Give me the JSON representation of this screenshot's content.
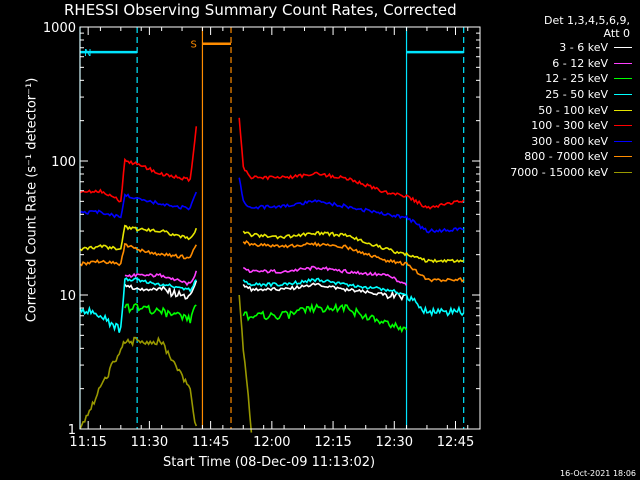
{
  "chart_data": {
    "type": "line",
    "title": "RHESSI Observing Summary Count Rates, Corrected",
    "xlabel": "Start Time (08-Dec-09 11:13:02)",
    "ylabel": "Corrected Count Rate (s⁻¹ detector⁻¹)",
    "y_scale": "log",
    "ylim": [
      1,
      1000
    ],
    "y_ticks": [
      1,
      10,
      100,
      1000
    ],
    "y_tick_labels": [
      "1",
      "10",
      "100",
      "1000"
    ],
    "xlim_minutes": [
      0,
      98
    ],
    "x_tick_labels": [
      "11:15",
      "11:30",
      "11:45",
      "12:00",
      "12:15",
      "12:30",
      "12:45"
    ],
    "x_tick_minutes": [
      2,
      17,
      32,
      47,
      62,
      77,
      92
    ],
    "legend_header": [
      "Det 1,3,4,5,6,9,",
      "Att 0"
    ],
    "legend_position": "top-right",
    "timestamp": "16-Oct-2021 18:06",
    "flags": [
      {
        "label": "N",
        "color": "#00e5ff",
        "start": 0,
        "end": 14,
        "level": 650
      },
      {
        "label": "S",
        "color": "#ff8c00",
        "start": 30,
        "end": 37,
        "level": 750
      },
      {
        "label": "",
        "color": "#00e5ff",
        "start": 80,
        "end": 94,
        "level": 650
      }
    ],
    "vlines": [
      {
        "x": 0,
        "color": "#00e5ff",
        "style": "solid"
      },
      {
        "x": 14,
        "color": "#00e5ff",
        "style": "dashed"
      },
      {
        "x": 30,
        "color": "#ff8c00",
        "style": "solid"
      },
      {
        "x": 37,
        "color": "#ff8c00",
        "style": "dashed"
      },
      {
        "x": 80,
        "color": "#00e5ff",
        "style": "solid"
      },
      {
        "x": 94,
        "color": "#00e5ff",
        "style": "dashed"
      }
    ],
    "x": [
      0,
      5,
      10,
      11,
      14,
      20,
      27,
      28.5,
      29,
      39,
      40,
      42,
      50,
      58,
      65,
      75,
      80,
      85,
      94
    ],
    "series": [
      {
        "name": "3 - 6 keV",
        "color": "#ffffff",
        "values": [
          null,
          null,
          null,
          12,
          11,
          11,
          9.5,
          13,
          null,
          null,
          12,
          11,
          11,
          12,
          11,
          10,
          9.5,
          null,
          null
        ]
      },
      {
        "name": "6 - 12 keV",
        "color": "#ff40ff",
        "values": [
          null,
          null,
          null,
          14,
          14,
          14,
          12,
          15,
          null,
          null,
          16,
          15,
          15,
          16,
          15,
          14,
          12,
          null,
          null
        ]
      },
      {
        "name": "12 - 25 keV",
        "color": "#00ff00",
        "values": [
          null,
          null,
          null,
          8,
          8,
          7.5,
          6.5,
          9,
          null,
          null,
          7,
          7,
          7,
          8,
          8,
          6,
          5.5,
          null,
          null
        ]
      },
      {
        "name": "25 - 50 keV",
        "color": "#00ffff",
        "values": [
          8,
          7,
          5.5,
          13,
          13,
          12,
          11,
          13,
          null,
          null,
          13,
          12,
          12,
          13,
          12,
          11,
          10,
          7.5,
          7.5
        ]
      },
      {
        "name": "50 - 100 keV",
        "color": "#e6e600",
        "values": [
          22,
          23,
          22,
          32,
          31,
          30,
          26,
          31,
          null,
          null,
          30,
          28,
          27,
          29,
          28,
          22,
          20,
          18,
          18
        ]
      },
      {
        "name": "100 - 300 keV",
        "color": "#ff0000",
        "values": [
          58,
          60,
          50,
          100,
          95,
          80,
          72,
          180,
          null,
          210,
          90,
          75,
          75,
          80,
          75,
          58,
          55,
          45,
          50
        ]
      },
      {
        "name": "300 - 800 keV",
        "color": "#0000ff",
        "values": [
          41,
          42,
          38,
          56,
          52,
          48,
          44,
          60,
          null,
          75,
          50,
          45,
          46,
          50,
          46,
          40,
          38,
          30,
          31
        ]
      },
      {
        "name": "800 - 7000 keV",
        "color": "#ff8c00",
        "values": [
          17,
          18,
          17,
          24,
          22,
          20,
          19,
          24,
          null,
          null,
          25,
          24,
          23,
          24,
          23,
          18,
          17,
          13,
          13
        ]
      },
      {
        "name": "7000 - 15000 keV",
        "color": "#999900",
        "values": [
          1,
          2,
          4,
          4.5,
          4.5,
          4.5,
          2,
          1,
          null,
          10,
          4,
          1,
          null,
          null,
          null,
          null,
          null,
          null,
          null
        ]
      }
    ]
  }
}
